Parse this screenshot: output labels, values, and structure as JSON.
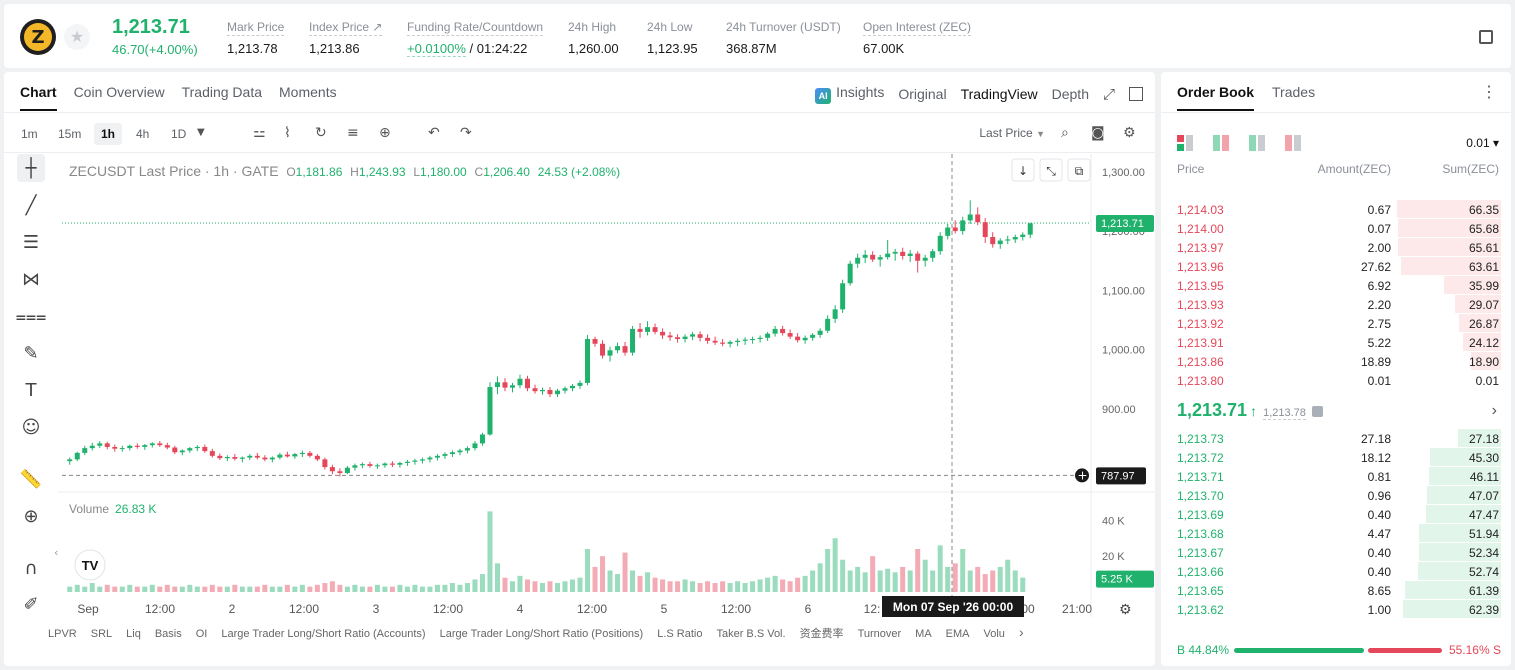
{
  "header": {
    "coin_symbol": "Z",
    "last_price": "1,213.71",
    "change": "46.70(+4.00%)",
    "stats": [
      {
        "label": "Mark Price",
        "value": "1,213.78"
      },
      {
        "label": "Index Price ↗",
        "value": "1,213.86"
      },
      {
        "label": "Funding Rate/Countdown",
        "value_green": "+0.0100%",
        "value": " / 01:24:22"
      },
      {
        "label": "24h High",
        "value": "1,260.00"
      },
      {
        "label": "24h Low",
        "value": "1,123.95"
      },
      {
        "label": "24h Turnover (USDT)",
        "value": "368.87M"
      },
      {
        "label": "Open Interest (ZEC)",
        "value": "67.00K"
      }
    ]
  },
  "chart_tabs": [
    "Chart",
    "Coin Overview",
    "Trading Data",
    "Moments"
  ],
  "views": {
    "insights": "Insights",
    "original": "Original",
    "tradingview": "TradingView",
    "depth": "Depth"
  },
  "timeframes": [
    "1m",
    "15m",
    "1h",
    "4h",
    "1D"
  ],
  "selected_timeframe": "1h",
  "price_source": "Last Price",
  "legend": {
    "title": "ZECUSDT Last Price · 1h · GATE",
    "o_key": "O",
    "o": "1,181.86",
    "h_key": "H",
    "h": "1,243.93",
    "l_key": "L",
    "l": "1,180.00",
    "c_key": "C",
    "c": "1,206.40",
    "chg": "24.53 (+2.08%)"
  },
  "volume_legend": {
    "label": "Volume",
    "value": "26.83 K"
  },
  "price_axis": [
    "1,300.00",
    "1,200.00",
    "1,100.00",
    "1,000.00",
    "900.00"
  ],
  "volume_axis": [
    "40 K",
    "20 K"
  ],
  "time_axis": [
    "Sep",
    "12:00",
    "2",
    "12:00",
    "3",
    "12:00",
    "4",
    "12:00",
    "5",
    "12:00",
    "6",
    "12:",
    "00",
    "21:00"
  ],
  "crosshair_label": "Mon 07 Sep '26   00:00",
  "price_tags": {
    "last": "1,213.71",
    "cursor": "787.97",
    "volume": "5.25 K"
  },
  "indicators": [
    "LPVR",
    "SRL",
    "Liq",
    "Basis",
    "OI",
    "Large Trader Long/Short Ratio (Accounts)",
    "Large Trader Long/Short Ratio (Positions)",
    "L.S Ratio",
    "Taker B.S Vol.",
    "资金费率",
    "Turnover",
    "MA",
    "EMA",
    "Volu"
  ],
  "chart_data": {
    "type": "candlestick",
    "interval": "1h",
    "ylim": [
      760,
      1330
    ],
    "series_note_color_up": "#20b26c",
    "series_note_color_down": "#e5475a",
    "candles": [
      [
        812,
        818,
        806,
        815
      ],
      [
        815,
        828,
        812,
        826
      ],
      [
        826,
        838,
        822,
        834
      ],
      [
        834,
        843,
        830,
        838
      ],
      [
        838,
        846,
        834,
        842
      ],
      [
        842,
        845,
        832,
        836
      ],
      [
        836,
        840,
        828,
        833
      ],
      [
        833,
        838,
        828,
        834
      ],
      [
        834,
        840,
        830,
        838
      ],
      [
        838,
        842,
        833,
        836
      ],
      [
        836,
        841,
        831,
        839
      ],
      [
        839,
        844,
        835,
        842
      ],
      [
        842,
        846,
        836,
        839
      ],
      [
        839,
        843,
        832,
        835
      ],
      [
        835,
        838,
        824,
        827
      ],
      [
        827,
        832,
        822,
        830
      ],
      [
        830,
        836,
        826,
        834
      ],
      [
        834,
        839,
        829,
        836
      ],
      [
        836,
        840,
        826,
        829
      ],
      [
        829,
        833,
        818,
        821
      ],
      [
        821,
        825,
        814,
        817
      ],
      [
        817,
        822,
        812,
        819
      ],
      [
        819,
        824,
        813,
        816
      ],
      [
        816,
        820,
        810,
        818
      ],
      [
        818,
        824,
        814,
        821
      ],
      [
        821,
        826,
        815,
        818
      ],
      [
        818,
        822,
        812,
        815
      ],
      [
        815,
        820,
        810,
        818
      ],
      [
        818,
        826,
        815,
        823
      ],
      [
        823,
        828,
        818,
        820
      ],
      [
        820,
        826,
        816,
        824
      ],
      [
        824,
        830,
        819,
        826
      ],
      [
        826,
        829,
        818,
        821
      ],
      [
        821,
        824,
        812,
        815
      ],
      [
        815,
        818,
        798,
        802
      ],
      [
        802,
        806,
        790,
        795
      ],
      [
        795,
        800,
        786,
        792
      ],
      [
        792,
        804,
        790,
        801
      ],
      [
        801,
        808,
        796,
        805
      ],
      [
        805,
        810,
        800,
        807
      ],
      [
        807,
        811,
        801,
        804
      ],
      [
        804,
        808,
        799,
        805
      ],
      [
        805,
        810,
        801,
        808
      ],
      [
        808,
        812,
        802,
        806
      ],
      [
        806,
        811,
        801,
        809
      ],
      [
        809,
        814,
        804,
        811
      ],
      [
        811,
        816,
        806,
        813
      ],
      [
        813,
        818,
        808,
        815
      ],
      [
        815,
        821,
        810,
        818
      ],
      [
        818,
        824,
        813,
        821
      ],
      [
        821,
        827,
        816,
        824
      ],
      [
        824,
        830,
        819,
        827
      ],
      [
        827,
        833,
        822,
        830
      ],
      [
        830,
        837,
        825,
        834
      ],
      [
        834,
        846,
        830,
        842
      ],
      [
        842,
        860,
        838,
        857
      ],
      [
        857,
        945,
        855,
        937
      ],
      [
        937,
        955,
        925,
        945
      ],
      [
        945,
        952,
        930,
        936
      ],
      [
        936,
        944,
        928,
        940
      ],
      [
        940,
        958,
        935,
        951
      ],
      [
        951,
        956,
        930,
        935
      ],
      [
        935,
        941,
        926,
        930
      ],
      [
        930,
        936,
        924,
        932
      ],
      [
        932,
        937,
        920,
        925
      ],
      [
        925,
        934,
        920,
        931
      ],
      [
        931,
        938,
        926,
        935
      ],
      [
        935,
        942,
        930,
        939
      ],
      [
        939,
        948,
        934,
        944
      ],
      [
        944,
        1025,
        940,
        1018
      ],
      [
        1018,
        1022,
        1005,
        1010
      ],
      [
        1010,
        1016,
        985,
        990
      ],
      [
        990,
        1005,
        980,
        999
      ],
      [
        999,
        1012,
        994,
        1006
      ],
      [
        1006,
        1013,
        990,
        995
      ],
      [
        995,
        1040,
        990,
        1035
      ],
      [
        1035,
        1045,
        1020,
        1030
      ],
      [
        1030,
        1048,
        1024,
        1038
      ],
      [
        1038,
        1044,
        1026,
        1030
      ],
      [
        1030,
        1036,
        1018,
        1024
      ],
      [
        1024,
        1030,
        1015,
        1021
      ],
      [
        1021,
        1026,
        1012,
        1018
      ],
      [
        1018,
        1026,
        1012,
        1022
      ],
      [
        1022,
        1030,
        1016,
        1026
      ],
      [
        1026,
        1031,
        1014,
        1020
      ],
      [
        1020,
        1026,
        1010,
        1015
      ],
      [
        1015,
        1022,
        1008,
        1012
      ],
      [
        1012,
        1018,
        1006,
        1010
      ],
      [
        1010,
        1016,
        1004,
        1013
      ],
      [
        1013,
        1019,
        1006,
        1015
      ],
      [
        1015,
        1021,
        1008,
        1017
      ],
      [
        1017,
        1022,
        1010,
        1018
      ],
      [
        1018,
        1024,
        1012,
        1020
      ],
      [
        1020,
        1030,
        1015,
        1027
      ],
      [
        1027,
        1040,
        1022,
        1035
      ],
      [
        1035,
        1040,
        1024,
        1028
      ],
      [
        1028,
        1034,
        1018,
        1022
      ],
      [
        1022,
        1028,
        1012,
        1016
      ],
      [
        1016,
        1024,
        1010,
        1020
      ],
      [
        1020,
        1028,
        1015,
        1025
      ],
      [
        1025,
        1036,
        1020,
        1032
      ],
      [
        1032,
        1058,
        1028,
        1052
      ],
      [
        1052,
        1075,
        1045,
        1068
      ],
      [
        1068,
        1118,
        1062,
        1112
      ],
      [
        1112,
        1150,
        1108,
        1145
      ],
      [
        1145,
        1162,
        1138,
        1155
      ],
      [
        1155,
        1168,
        1146,
        1160
      ],
      [
        1160,
        1166,
        1148,
        1152
      ],
      [
        1152,
        1160,
        1140,
        1156
      ],
      [
        1156,
        1185,
        1152,
        1162
      ],
      [
        1162,
        1170,
        1150,
        1165
      ],
      [
        1165,
        1172,
        1152,
        1158
      ],
      [
        1158,
        1168,
        1148,
        1162
      ],
      [
        1162,
        1166,
        1130,
        1150
      ],
      [
        1150,
        1160,
        1140,
        1155
      ],
      [
        1155,
        1170,
        1148,
        1166
      ],
      [
        1166,
        1198,
        1160,
        1192
      ],
      [
        1192,
        1212,
        1186,
        1206
      ],
      [
        1206,
        1218,
        1196,
        1200
      ],
      [
        1200,
        1224,
        1194,
        1218
      ],
      [
        1218,
        1252,
        1212,
        1228
      ],
      [
        1228,
        1240,
        1210,
        1215
      ],
      [
        1215,
        1222,
        1180,
        1190
      ],
      [
        1190,
        1198,
        1172,
        1178
      ],
      [
        1178,
        1188,
        1170,
        1184
      ],
      [
        1184,
        1192,
        1178,
        1186
      ],
      [
        1186,
        1194,
        1180,
        1190
      ],
      [
        1190,
        1198,
        1184,
        1194
      ],
      [
        1194,
        1214,
        1188,
        1213
      ]
    ],
    "volume": [
      3,
      4,
      3,
      5,
      3,
      4,
      3,
      3,
      4,
      3,
      3,
      4,
      3,
      4,
      3,
      3,
      4,
      3,
      3,
      4,
      3,
      3,
      4,
      3,
      3,
      3,
      4,
      3,
      3,
      4,
      3,
      4,
      3,
      4,
      5,
      6,
      4,
      3,
      4,
      3,
      3,
      4,
      3,
      3,
      4,
      3,
      4,
      3,
      3,
      4,
      4,
      5,
      4,
      5,
      7,
      10,
      45,
      16,
      8,
      6,
      9,
      7,
      6,
      5,
      6,
      5,
      6,
      7,
      8,
      24,
      14,
      20,
      12,
      10,
      22,
      12,
      9,
      11,
      8,
      7,
      6,
      6,
      7,
      6,
      5,
      6,
      5,
      6,
      5,
      6,
      5,
      6,
      7,
      8,
      9,
      7,
      6,
      8,
      9,
      12,
      16,
      24,
      30,
      18,
      12,
      14,
      11,
      20,
      12,
      13,
      11,
      14,
      12,
      24,
      18,
      12,
      26,
      14,
      16,
      24,
      12,
      14,
      10,
      12,
      14,
      18,
      12,
      8
    ]
  },
  "orderbook": {
    "tabs": [
      "Order Book",
      "Trades"
    ],
    "step": "0.01 ▾",
    "headers": {
      "price": "Price",
      "amount": "Amount(ZEC)",
      "sum": "Sum(ZEC)"
    },
    "asks": [
      {
        "price": "1,214.03",
        "amount": "0.67",
        "sum": "66.35"
      },
      {
        "price": "1,214.00",
        "amount": "0.07",
        "sum": "65.68"
      },
      {
        "price": "1,213.97",
        "amount": "2.00",
        "sum": "65.61"
      },
      {
        "price": "1,213.96",
        "amount": "27.62",
        "sum": "63.61"
      },
      {
        "price": "1,213.95",
        "amount": "6.92",
        "sum": "35.99"
      },
      {
        "price": "1,213.93",
        "amount": "2.20",
        "sum": "29.07"
      },
      {
        "price": "1,213.92",
        "amount": "2.75",
        "sum": "26.87"
      },
      {
        "price": "1,213.91",
        "amount": "5.22",
        "sum": "24.12"
      },
      {
        "price": "1,213.86",
        "amount": "18.89",
        "sum": "18.90"
      },
      {
        "price": "1,213.80",
        "amount": "0.01",
        "sum": "0.01"
      }
    ],
    "mid_price": "1,213.71",
    "mid_arrow": "↑",
    "mark_price": "1,213.78",
    "bids": [
      {
        "price": "1,213.73",
        "amount": "27.18",
        "sum": "27.18"
      },
      {
        "price": "1,213.72",
        "amount": "18.12",
        "sum": "45.30"
      },
      {
        "price": "1,213.71",
        "amount": "0.81",
        "sum": "46.11"
      },
      {
        "price": "1,213.70",
        "amount": "0.96",
        "sum": "47.07"
      },
      {
        "price": "1,213.69",
        "amount": "0.40",
        "sum": "47.47"
      },
      {
        "price": "1,213.68",
        "amount": "4.47",
        "sum": "51.94"
      },
      {
        "price": "1,213.67",
        "amount": "0.40",
        "sum": "52.34"
      },
      {
        "price": "1,213.66",
        "amount": "0.40",
        "sum": "52.74"
      },
      {
        "price": "1,213.65",
        "amount": "8.65",
        "sum": "61.39"
      },
      {
        "price": "1,213.62",
        "amount": "1.00",
        "sum": "62.39"
      }
    ],
    "buy_ratio": "B 44.84%",
    "sell_ratio": "55.16% S",
    "buy_ratio_value": 44.84
  }
}
